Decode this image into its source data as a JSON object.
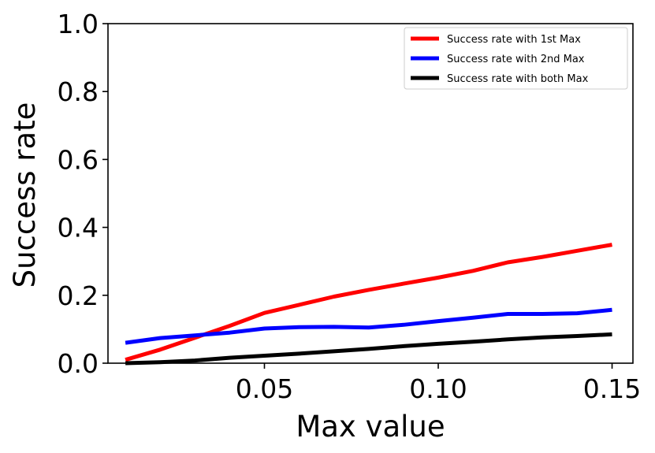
{
  "chart_data": {
    "type": "line",
    "title": "",
    "xlabel": "Max value",
    "ylabel": "Success rate",
    "xlim": [
      0.005,
      0.156
    ],
    "ylim": [
      0.0,
      1.0
    ],
    "xticks": [
      0.05,
      0.1,
      0.15
    ],
    "xtick_labels": [
      "0.05",
      "0.10",
      "0.15"
    ],
    "yticks": [
      0.0,
      0.2,
      0.4,
      0.6,
      0.8,
      1.0
    ],
    "ytick_labels": [
      "0.0",
      "0.2",
      "0.4",
      "0.6",
      "0.8",
      "1.0"
    ],
    "grid": false,
    "legend_position": "top-right",
    "x": [
      0.01,
      0.02,
      0.03,
      0.04,
      0.05,
      0.06,
      0.07,
      0.08,
      0.09,
      0.1,
      0.11,
      0.12,
      0.13,
      0.14,
      0.15
    ],
    "series": [
      {
        "name": "Success rate with 1st Max",
        "color": "#ff0000",
        "values": [
          0.01,
          0.04,
          0.075,
          0.11,
          0.148,
          0.172,
          0.196,
          0.216,
          0.234,
          0.252,
          0.272,
          0.297,
          0.313,
          0.331,
          0.349
        ]
      },
      {
        "name": "Success rate with 2nd Max",
        "color": "#0000ff",
        "values": [
          0.06,
          0.074,
          0.082,
          0.09,
          0.102,
          0.106,
          0.107,
          0.105,
          0.113,
          0.124,
          0.134,
          0.145,
          0.145,
          0.147,
          0.157
        ]
      },
      {
        "name": "Success rate with both Max",
        "color": "#000000",
        "values": [
          0.0,
          0.003,
          0.008,
          0.016,
          0.022,
          0.028,
          0.035,
          0.042,
          0.05,
          0.057,
          0.063,
          0.07,
          0.076,
          0.08,
          0.085
        ]
      }
    ]
  }
}
